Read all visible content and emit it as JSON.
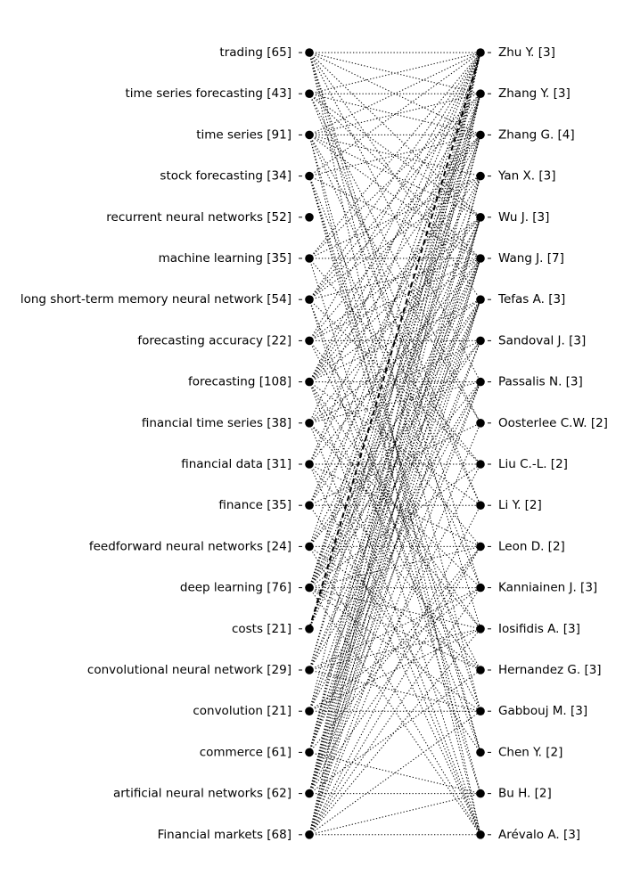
{
  "chart_data": {
    "type": "bipartite-network",
    "title": "",
    "left_nodes": [
      "trading [65]",
      "time series forecasting [43]",
      "time series [91]",
      "stock forecasting [34]",
      "recurrent neural networks [52]",
      "machine learning [35]",
      "long short-term memory neural network [54]",
      "forecasting accuracy [22]",
      "forecasting [108]",
      "financial time series [38]",
      "financial data [31]",
      "finance [35]",
      "feedforward neural networks [24]",
      "deep learning [76]",
      "costs [21]",
      "convolutional neural network [29]",
      "convolution [21]",
      "commerce [61]",
      "artificial neural networks [62]",
      "Financial markets [68]"
    ],
    "right_nodes": [
      "Zhu Y. [3]",
      "Zhang Y. [3]",
      "Zhang G. [4]",
      "Yan X. [3]",
      "Wu J. [3]",
      "Wang J. [7]",
      "Tefas A. [3]",
      "Sandoval J. [3]",
      "Passalis N. [3]",
      "Oosterlee C.W. [2]",
      "Liu C.-L. [2]",
      "Li Y. [2]",
      "Leon D. [2]",
      "Kanniainen J. [3]",
      "Iosifidis A. [3]",
      "Hernandez G. [3]",
      "Gabbouj M. [3]",
      "Chen Y. [2]",
      "Bu H. [2]",
      "Arévalo A. [3]"
    ],
    "edges": [
      [
        0,
        0
      ],
      [
        0,
        1
      ],
      [
        0,
        2
      ],
      [
        0,
        4
      ],
      [
        0,
        6
      ],
      [
        0,
        8
      ],
      [
        0,
        13
      ],
      [
        0,
        14
      ],
      [
        0,
        16
      ],
      [
        0,
        19
      ],
      [
        1,
        0
      ],
      [
        1,
        1
      ],
      [
        1,
        2
      ],
      [
        1,
        4
      ],
      [
        1,
        5
      ],
      [
        1,
        9
      ],
      [
        1,
        11
      ],
      [
        2,
        0
      ],
      [
        2,
        1
      ],
      [
        2,
        2
      ],
      [
        2,
        3
      ],
      [
        2,
        4
      ],
      [
        2,
        5
      ],
      [
        2,
        9
      ],
      [
        2,
        11
      ],
      [
        2,
        17
      ],
      [
        2,
        19
      ],
      [
        3,
        0
      ],
      [
        3,
        2
      ],
      [
        3,
        5
      ],
      [
        3,
        13
      ],
      [
        3,
        16
      ],
      [
        3,
        17
      ],
      [
        3,
        18
      ],
      [
        5,
        0
      ],
      [
        5,
        1
      ],
      [
        5,
        3
      ],
      [
        5,
        5
      ],
      [
        5,
        10
      ],
      [
        5,
        18
      ],
      [
        6,
        0
      ],
      [
        6,
        1
      ],
      [
        6,
        2
      ],
      [
        6,
        3
      ],
      [
        6,
        5
      ],
      [
        6,
        10
      ],
      [
        6,
        17
      ],
      [
        6,
        19
      ],
      [
        7,
        0
      ],
      [
        7,
        2
      ],
      [
        7,
        4
      ],
      [
        7,
        5
      ],
      [
        7,
        7
      ],
      [
        7,
        12
      ],
      [
        7,
        15
      ],
      [
        8,
        0
      ],
      [
        8,
        1
      ],
      [
        8,
        2
      ],
      [
        8,
        3
      ],
      [
        8,
        4
      ],
      [
        8,
        5
      ],
      [
        8,
        6
      ],
      [
        8,
        8
      ],
      [
        8,
        11
      ],
      [
        8,
        14
      ],
      [
        8,
        16
      ],
      [
        8,
        19
      ],
      [
        9,
        0
      ],
      [
        9,
        4
      ],
      [
        9,
        6
      ],
      [
        9,
        7
      ],
      [
        9,
        8
      ],
      [
        9,
        13
      ],
      [
        9,
        14
      ],
      [
        9,
        19
      ],
      [
        10,
        0
      ],
      [
        10,
        2
      ],
      [
        10,
        5
      ],
      [
        10,
        10
      ],
      [
        10,
        12
      ],
      [
        10,
        15
      ],
      [
        10,
        19
      ],
      [
        11,
        1
      ],
      [
        11,
        3
      ],
      [
        11,
        5
      ],
      [
        11,
        9
      ],
      [
        11,
        11
      ],
      [
        11,
        17
      ],
      [
        12,
        0
      ],
      [
        12,
        4
      ],
      [
        12,
        6
      ],
      [
        12,
        7
      ],
      [
        12,
        12
      ],
      [
        12,
        15
      ],
      [
        12,
        19
      ],
      [
        13,
        0
      ],
      [
        13,
        1
      ],
      [
        13,
        2
      ],
      [
        13,
        4
      ],
      [
        13,
        5
      ],
      [
        13,
        6
      ],
      [
        13,
        7
      ],
      [
        13,
        8
      ],
      [
        13,
        10
      ],
      [
        13,
        12
      ],
      [
        13,
        13
      ],
      [
        13,
        14
      ],
      [
        13,
        15
      ],
      [
        13,
        16
      ],
      [
        13,
        19
      ],
      [
        14,
        0
      ],
      [
        14,
        1
      ],
      [
        14,
        2
      ],
      [
        14,
        3
      ],
      [
        14,
        5
      ],
      [
        15,
        0
      ],
      [
        15,
        1
      ],
      [
        15,
        5
      ],
      [
        15,
        6
      ],
      [
        15,
        8
      ],
      [
        15,
        13
      ],
      [
        15,
        14
      ],
      [
        15,
        16
      ],
      [
        16,
        0
      ],
      [
        16,
        4
      ],
      [
        16,
        6
      ],
      [
        16,
        8
      ],
      [
        16,
        13
      ],
      [
        16,
        14
      ],
      [
        16,
        16
      ],
      [
        17,
        0
      ],
      [
        17,
        1
      ],
      [
        17,
        2
      ],
      [
        17,
        4
      ],
      [
        17,
        5
      ],
      [
        17,
        6
      ],
      [
        17,
        7
      ],
      [
        17,
        12
      ],
      [
        17,
        18
      ],
      [
        18,
        0
      ],
      [
        18,
        1
      ],
      [
        18,
        2
      ],
      [
        18,
        3
      ],
      [
        18,
        4
      ],
      [
        18,
        5
      ],
      [
        18,
        6
      ],
      [
        18,
        7
      ],
      [
        18,
        8
      ],
      [
        18,
        10
      ],
      [
        18,
        12
      ],
      [
        18,
        15
      ],
      [
        18,
        18
      ],
      [
        19,
        0
      ],
      [
        19,
        1
      ],
      [
        19,
        3
      ],
      [
        19,
        4
      ],
      [
        19,
        5
      ],
      [
        19,
        6
      ],
      [
        19,
        8
      ],
      [
        19,
        9
      ],
      [
        19,
        11
      ],
      [
        19,
        12
      ],
      [
        19,
        13
      ],
      [
        19,
        14
      ],
      [
        19,
        16
      ],
      [
        19,
        18
      ],
      [
        19,
        19
      ]
    ],
    "strong_edges": [
      [
        14,
        0
      ]
    ],
    "node_color": "#000000",
    "edge_color": "#000000"
  }
}
